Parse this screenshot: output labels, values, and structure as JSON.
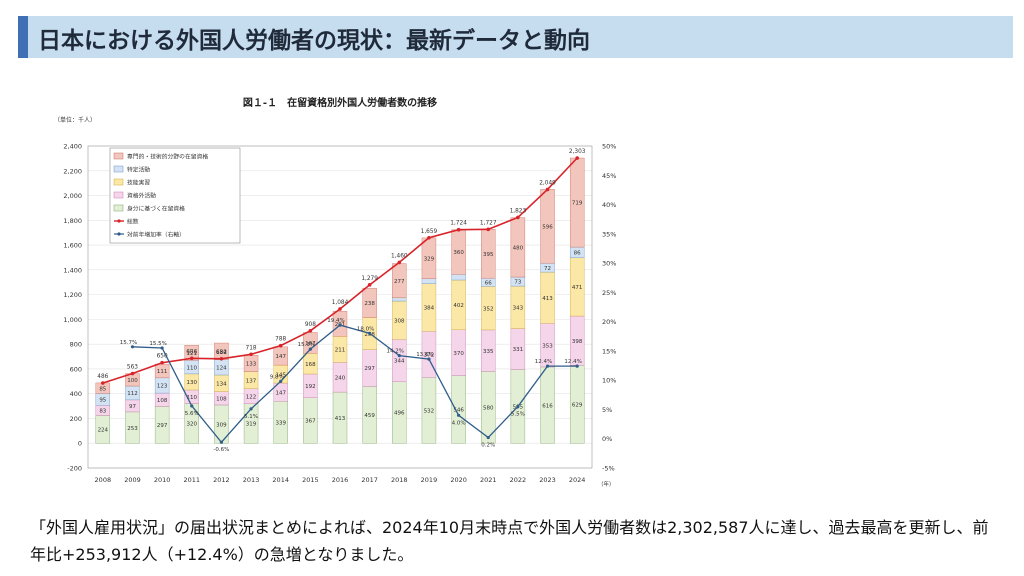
{
  "header": {
    "title": "日本における外国人労働者の現状：最新データと動向"
  },
  "chart_data": {
    "type": "bar",
    "title": "図１-１　在留資格別外国人労働者数の推移",
    "unit_label": "（単位：千人）",
    "x_unit": "（年）",
    "categories": [
      "2008",
      "2009",
      "2010",
      "2011",
      "2012",
      "2013",
      "2014",
      "2015",
      "2016",
      "2017",
      "2018",
      "2019",
      "2020",
      "2021",
      "2022",
      "2023",
      "2024"
    ],
    "series": [
      {
        "name": "身分に基づく在留資格",
        "color": "#e2efd4",
        "stroke": "#7aa56a",
        "values": [
          224,
          253,
          297,
          320,
          309,
          319,
          339,
          367,
          413,
          459,
          496,
          532,
          546,
          580,
          595,
          616,
          629
        ],
        "show_labels": true
      },
      {
        "name": "資格外活動",
        "color": "#f5d5ea",
        "stroke": "#c77fb0",
        "values": [
          83,
          97,
          108,
          110,
          108,
          122,
          147,
          192,
          240,
          297,
          344,
          372,
          370,
          335,
          331,
          353,
          398
        ],
        "show_labels": true
      },
      {
        "name": "技能実習",
        "color": "#fbe7a6",
        "stroke": "#cfa93c",
        "values": [
          0,
          0,
          0,
          130,
          134,
          137,
          145,
          168,
          211,
          258,
          308,
          384,
          402,
          352,
          343,
          413,
          471
        ],
        "show_labels": true
      },
      {
        "name": "特定活動",
        "color": "#d4e3f3",
        "stroke": "#6d95c4",
        "values": [
          95,
          112,
          123,
          110,
          124,
          0,
          0,
          0,
          0,
          0,
          26,
          41,
          46,
          66,
          73,
          72,
          86
        ],
        "show_labels": true
      },
      {
        "name": "専門的・技術的分野の在留資格",
        "color": "#f3c6bd",
        "stroke": "#c96e5d",
        "values": [
          85,
          100,
          111,
          121,
          134,
          133,
          147,
          167,
          201,
          238,
          277,
          329,
          360,
          395,
          480,
          596,
          719
        ],
        "show_labels": true
      }
    ],
    "totals": {
      "name": "総数",
      "color": "#d9232a",
      "values": [
        486,
        563,
        650,
        686,
        682,
        718,
        788,
        908,
        1084,
        1279,
        1460,
        1659,
        1724,
        1727,
        1823,
        2049,
        2303
      ]
    },
    "growth": {
      "name": "対前年増加率（右軸）",
      "color": "#2f5d8a",
      "values": [
        15.7,
        15.5,
        5.6,
        -0.6,
        5.1,
        9.8,
        15.3,
        19.4,
        18.0,
        14.2,
        13.6,
        4.0,
        0.2,
        5.5,
        12.4,
        12.4
      ],
      "labels": [
        "15.7%",
        "15.5%",
        "5.6%",
        "-0.6%",
        "5.1%",
        "9.8%",
        "15.3%",
        "19.4%",
        "18.0%",
        "14.2%",
        "13.6%",
        "4.0%",
        "0.2%",
        "5.5%",
        "12.4%",
        "12.4%"
      ],
      "start_index": 1
    },
    "ylim": [
      -200,
      2400
    ],
    "yticks": [
      "-200",
      "0",
      "200",
      "400",
      "600",
      "800",
      "1,000",
      "1,200",
      "1,400",
      "1,600",
      "1,800",
      "2,000",
      "2,200",
      "2,400"
    ],
    "y2lim": [
      -5,
      50
    ],
    "y2ticks": [
      "-5%",
      "0%",
      "5%",
      "10%",
      "15%",
      "20%",
      "25%",
      "30%",
      "35%",
      "40%",
      "45%",
      "50%"
    ],
    "legend_position": "top-left",
    "grid": true
  },
  "text": {
    "paragraph": "「外国人雇用状況」の届出状況まとめによれば、2024年10月末時点で外国人労働者数は2,302,587人に達し、過去最高を更新し、前年比+253,912人（+12.4%）の急増となりました。"
  }
}
